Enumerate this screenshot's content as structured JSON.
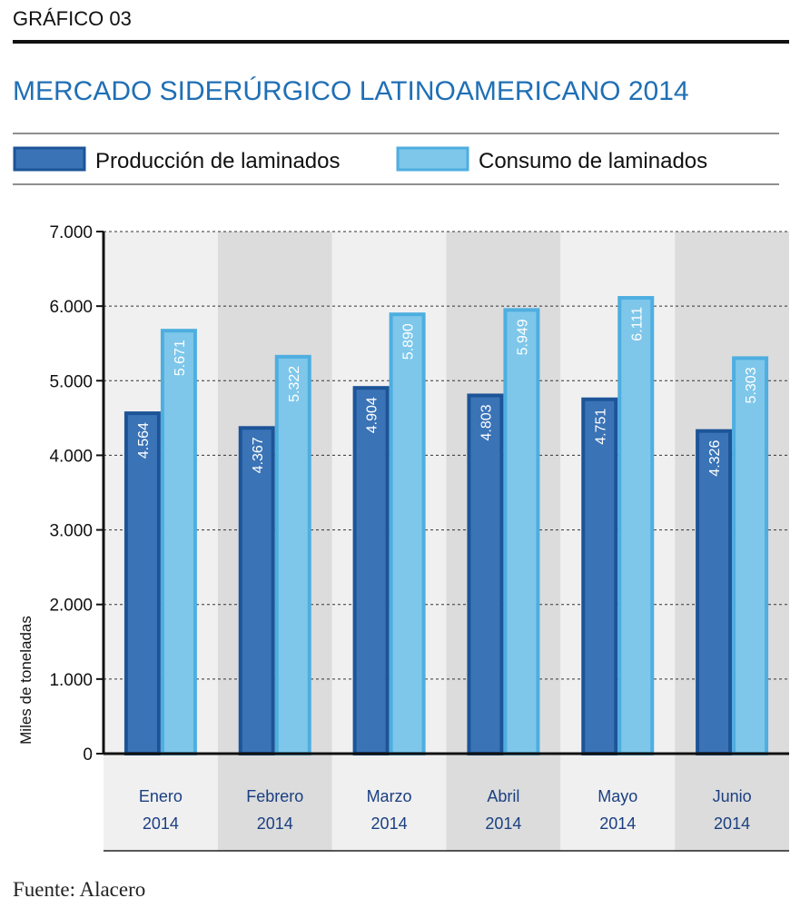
{
  "header": {
    "label": "GRÁFICO  03",
    "title": "MERCADO SIDERÚRGICO LATINOAMERICANO 2014"
  },
  "source": "Fuente: Alacero",
  "colors": {
    "production": "#3a73b6",
    "production_border": "#1d5498",
    "consumption": "#7ec7ea",
    "consumption_border": "#4eaee0",
    "band_light": "#f0f0f0",
    "band_dark": "#dcdcdc",
    "title": "#1f6fb5",
    "category_text": "#1a3f82"
  },
  "chart_data": {
    "type": "bar",
    "categories": [
      [
        "Enero",
        "2014"
      ],
      [
        "Febrero",
        "2014"
      ],
      [
        "Marzo",
        "2014"
      ],
      [
        "Abril",
        "2014"
      ],
      [
        "Mayo",
        "2014"
      ],
      [
        "Junio",
        "2014"
      ]
    ],
    "series": [
      {
        "name": "Producción de laminados",
        "values": [
          4564,
          4367,
          4904,
          4803,
          4751,
          4326
        ],
        "labels": [
          "4.564",
          "4.367",
          "4.904",
          "4.803",
          "4.751",
          "4.326"
        ]
      },
      {
        "name": "Consumo de laminados",
        "values": [
          5671,
          5322,
          5890,
          5949,
          6111,
          5303
        ],
        "labels": [
          "5.671",
          "5.322",
          "5.890",
          "5.949",
          "6.111",
          "5.303"
        ]
      }
    ],
    "ylabel": "Miles de toneladas",
    "ylim": [
      0,
      7000
    ],
    "yticks": [
      0,
      1000,
      2000,
      3000,
      4000,
      5000,
      6000,
      7000
    ],
    "ytick_labels": [
      "0",
      "1.000",
      "2.000",
      "3.000",
      "4.000",
      "5.000",
      "6.000",
      "7.000"
    ],
    "grid": true,
    "legend_position": "top"
  }
}
